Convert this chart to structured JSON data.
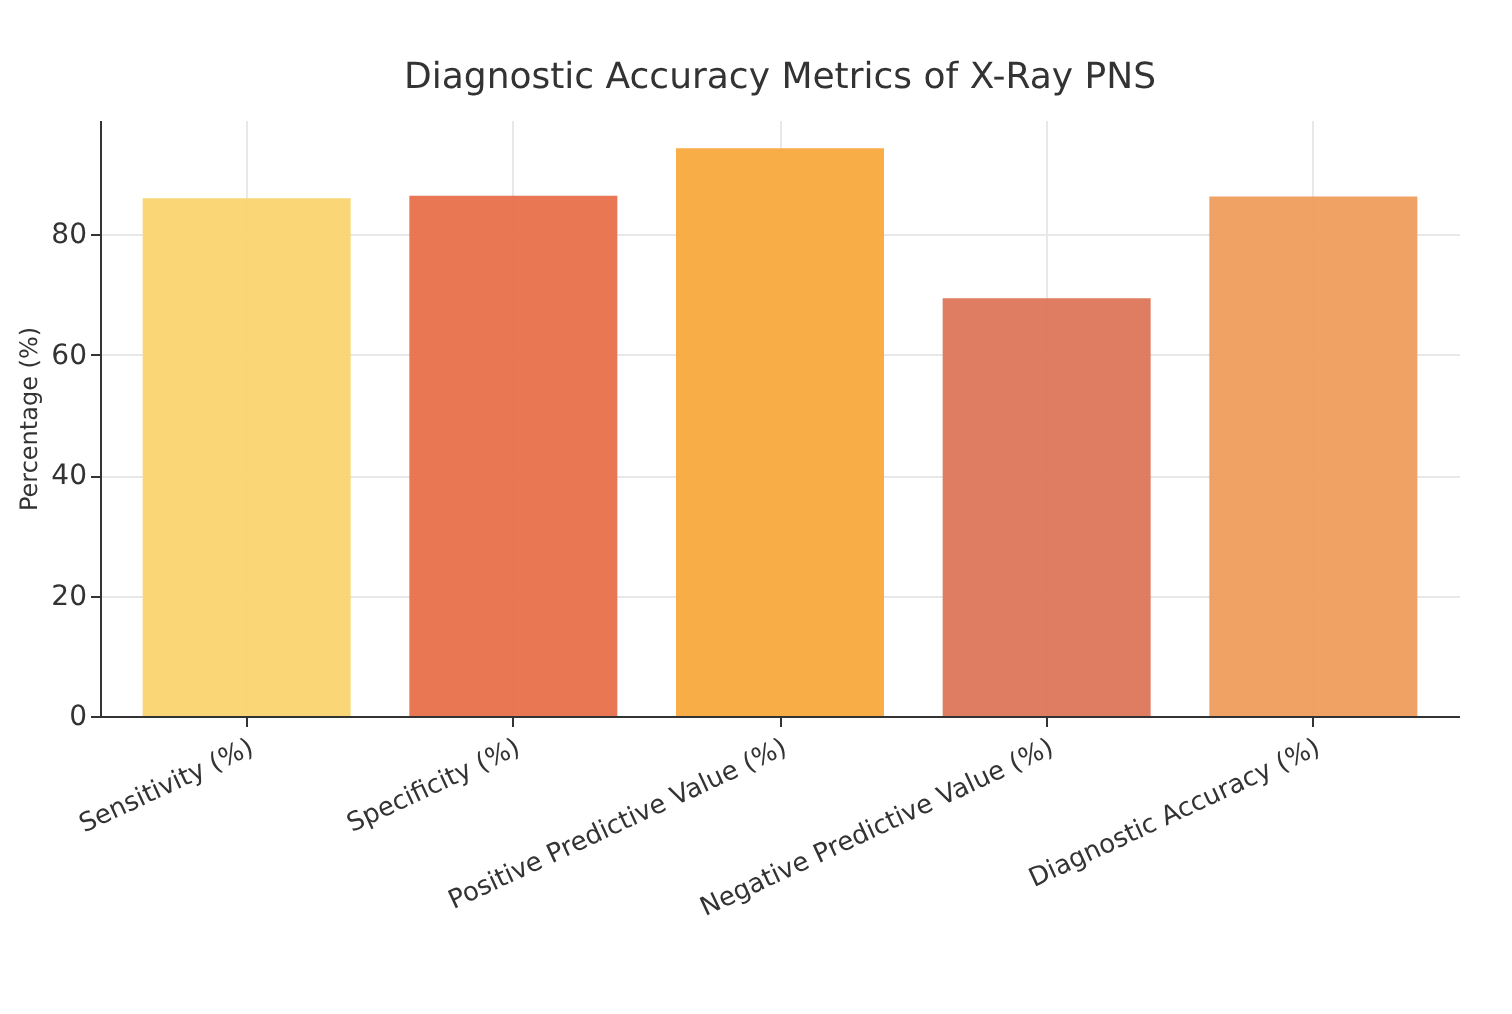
{
  "chart_data": {
    "type": "bar",
    "title": "Diagnostic Accuracy Metrics of X-Ray PNS",
    "ylabel": "Percentage (%)",
    "categories": [
      "Sensitivity (%)",
      "Specificity (%)",
      "Positive Predictive Value (%)",
      "Negative Predictive Value (%)",
      "Diagnostic Accuracy (%)"
    ],
    "values": [
      86.0,
      86.4,
      94.3,
      69.4,
      86.3
    ],
    "colors": [
      "#fad46f",
      "#e8704a",
      "#f9a93c",
      "#dd765a",
      "#ef9c5c"
    ],
    "ylim": [
      0,
      99
    ],
    "yticks": [
      0,
      20,
      40,
      60,
      80
    ],
    "grid": true
  }
}
